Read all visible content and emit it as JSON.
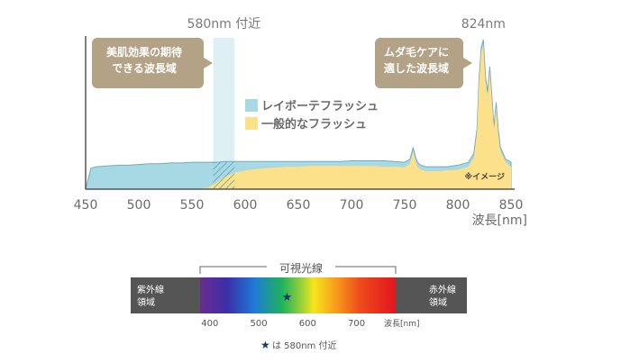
{
  "chart_data": {
    "type": "area",
    "xlim": [
      450,
      850
    ],
    "x_ticks": [
      "450",
      "500",
      "550",
      "600",
      "650",
      "700",
      "750",
      "800",
      "850"
    ],
    "xlabel": "波長[nm]",
    "highlight_band": {
      "x_range": [
        570,
        590
      ],
      "label": "580nm 付近"
    },
    "peak_label": "824nm",
    "note": "※イメージ",
    "callouts": [
      {
        "lines": [
          "美肌効果の期待",
          "できる波長域"
        ]
      },
      {
        "lines": [
          "ムダ毛ケアに",
          "適した波長域"
        ]
      }
    ],
    "legend_position": "center",
    "series": [
      {
        "name": "レイボーテフラッシュ",
        "color": "#a6d9e4",
        "x": [
          450,
          455,
          460,
          470,
          480,
          490,
          500,
          510,
          520,
          530,
          540,
          550,
          560,
          570,
          575,
          580,
          590,
          600,
          610,
          620,
          630,
          640,
          650,
          660,
          670,
          680,
          690,
          700,
          710,
          720,
          730,
          740,
          750,
          755,
          758,
          760,
          762,
          765,
          770,
          780,
          790,
          800,
          805,
          810,
          815,
          818,
          820,
          822,
          824,
          826,
          828,
          830,
          832,
          834,
          836,
          838,
          840,
          845,
          850
        ],
        "y": [
          0,
          14,
          15,
          15.5,
          16,
          16,
          16.5,
          17,
          17,
          17.5,
          17.5,
          18,
          18,
          18,
          18,
          18.5,
          18.5,
          18.5,
          18.5,
          18.5,
          18.5,
          18.5,
          18.5,
          18.5,
          18.5,
          18.5,
          18.5,
          19,
          19,
          19,
          19,
          18.5,
          18,
          20,
          28,
          22,
          18,
          16,
          15,
          15,
          15,
          16,
          17,
          18,
          24,
          40,
          75,
          95,
          100,
          75,
          65,
          82,
          62,
          42,
          58,
          40,
          28,
          20,
          18
        ]
      },
      {
        "name": "一般的なフラッシュ",
        "color": "#fde08a",
        "x": [
          450,
          555,
          565,
          570,
          575,
          580,
          590,
          600,
          610,
          620,
          630,
          640,
          650,
          660,
          670,
          680,
          690,
          700,
          710,
          720,
          730,
          740,
          750,
          755,
          758,
          760,
          762,
          765,
          770,
          780,
          790,
          800,
          805,
          810,
          815,
          818,
          820,
          822,
          824,
          826,
          828,
          830,
          832,
          834,
          836,
          838,
          840,
          845,
          850
        ],
        "y": [
          0,
          0,
          1,
          3,
          5.5,
          8,
          11,
          12.5,
          13.5,
          14,
          14.5,
          15,
          15,
          15.5,
          15.5,
          15.5,
          15.5,
          15.5,
          15.5,
          15.5,
          15,
          15,
          14.5,
          17,
          25,
          19,
          15,
          13,
          12,
          12,
          12.5,
          13,
          14,
          15,
          21,
          38,
          72,
          92,
          96,
          72,
          62,
          79,
          59,
          40,
          55,
          37,
          25,
          18,
          15
        ]
      }
    ]
  },
  "spectrum": {
    "title": "可視光線",
    "left_label": [
      "紫外線",
      "領域"
    ],
    "right_label": [
      "赤外線",
      "領域"
    ],
    "ticks": [
      "400",
      "500",
      "600",
      "700"
    ],
    "tick_values": [
      400,
      500,
      600,
      700
    ],
    "unit": "波長[nm]",
    "range": [
      380,
      780
    ],
    "star_value": 580,
    "footnote_star": "★",
    "footnote_text": "は 580nm 付近"
  }
}
